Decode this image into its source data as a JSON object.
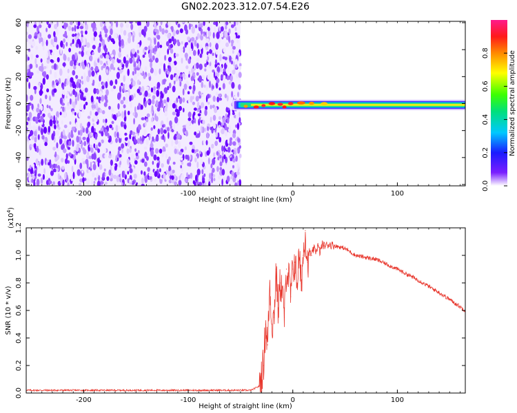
{
  "title": "GN02.2023.312.07.54.E26",
  "chart_data": [
    {
      "type": "heatmap",
      "xlabel": "Height of straight line (km)",
      "ylabel": "Frequency (Hz)",
      "xlim": [
        -255,
        165
      ],
      "ylim": [
        -61,
        61
      ],
      "x_ticks": [
        -200,
        -100,
        0,
        100
      ],
      "y_ticks": [
        -60,
        -40,
        -20,
        0,
        20,
        40,
        60
      ],
      "colorbar": {
        "label": "Normalized spectral amplitude",
        "range": [
          0.0,
          1.0
        ],
        "ticks": [
          "0.0",
          "0.2",
          "0.4",
          "0.6",
          "0.8"
        ],
        "colormap": "rainbow"
      },
      "noise_region_km": [
        -255,
        -50
      ],
      "signal_band_hz": [
        -4,
        3
      ]
    },
    {
      "type": "line",
      "xlabel": "Height of straight line (km)",
      "ylabel": "SNR (10 * v/v)",
      "scale_label": "(x10",
      "scale_exponent": "4",
      "xlim": [
        -255,
        165
      ],
      "ylim": [
        0.0,
        1.2
      ],
      "x_ticks": [
        -200,
        -100,
        0,
        100
      ],
      "y_ticks": [
        "0.0",
        "0.2",
        "0.4",
        "0.6",
        "0.8",
        "1.0",
        "1.2"
      ],
      "series": [
        {
          "color": "#e8382e",
          "x": [
            -255,
            -200,
            -100,
            -40,
            -32,
            -28,
            -26,
            -24,
            -22,
            -20,
            -18,
            -16,
            -14,
            -12,
            -10,
            -8,
            -6,
            -4,
            -2,
            0,
            2,
            4,
            6,
            8,
            10,
            12,
            14,
            16,
            18,
            20,
            22,
            24,
            26,
            28,
            30,
            35,
            40,
            45,
            50,
            60,
            80,
            100,
            120,
            140,
            150,
            165
          ],
          "y": [
            0.02,
            0.02,
            0.02,
            0.02,
            0.05,
            0.2,
            0.5,
            0.35,
            0.8,
            0.5,
            0.55,
            0.9,
            0.6,
            0.8,
            0.75,
            0.55,
            0.9,
            0.85,
            0.7,
            0.9,
            0.95,
            0.8,
            0.98,
            0.8,
            1.0,
            1.18,
            0.95,
            1.03,
            1.0,
            1.05,
            1.03,
            1.07,
            1.02,
            1.08,
            1.07,
            1.08,
            1.07,
            1.06,
            1.05,
            1.0,
            0.97,
            0.9,
            0.82,
            0.73,
            0.68,
            0.6
          ]
        }
      ]
    }
  ]
}
